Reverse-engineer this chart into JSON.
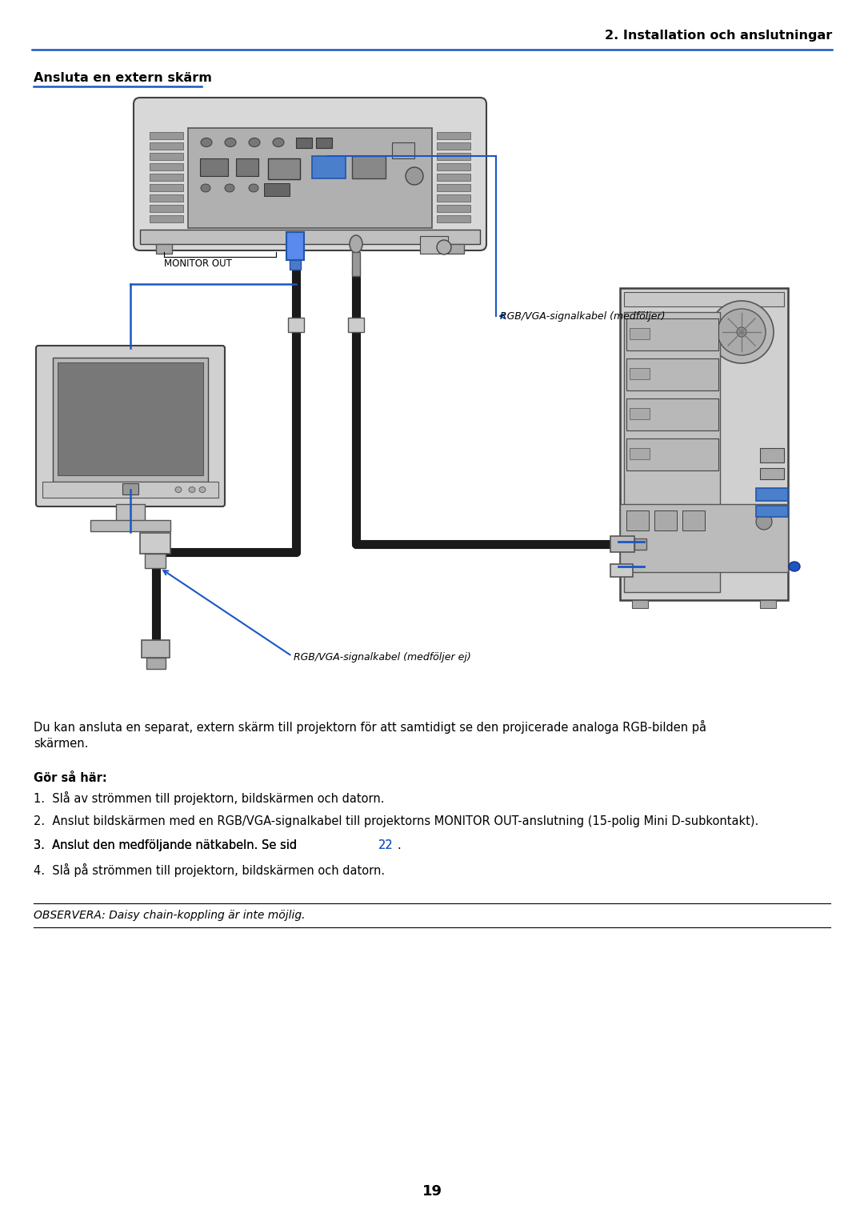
{
  "page_number": "19",
  "header_right": "2. Installation och anslutningar",
  "section_title": "Ansluta en extern skärm",
  "desc_line1": "Du kan ansluta en separat, extern skärm till projektorn för att samtidigt se den projicerade analoga RGB-bilden på",
  "desc_line2": "skärmen.",
  "gor_sa_har_label": "Gör så här:",
  "step1": "1.  Slå av strömmen till projektorn, bildskärmen och datorn.",
  "step2": "2.  Anslut bildskärmen med en RGB/VGA-signalkabel till projektorns MONITOR OUT-anslutning (15-polig Mini D-subkontakt).",
  "step3_pre": "3.  Anslut den medföljande nätkabeln. Se sid ",
  "step3_link": "22",
  "step3_post": ".",
  "step4": "4.  Slå på strömmen till projektorn, bildskärmen och datorn.",
  "note": "OBSERVERA: Daisy chain-koppling är inte möjlig.",
  "cable_label1": "RGB/VGA-signalkabel (medföljer)",
  "cable_label2": "RGB/VGA-signalkabel (medföljer ej)",
  "monitor_out_label": "MONITOR OUT",
  "blue": "#1a56c4",
  "black": "#000000",
  "white": "#ffffff",
  "dark_gray": "#404040",
  "mid_gray": "#888888",
  "light_gray": "#cccccc",
  "lighter_gray": "#e0e0e0",
  "bg": "#ffffff"
}
